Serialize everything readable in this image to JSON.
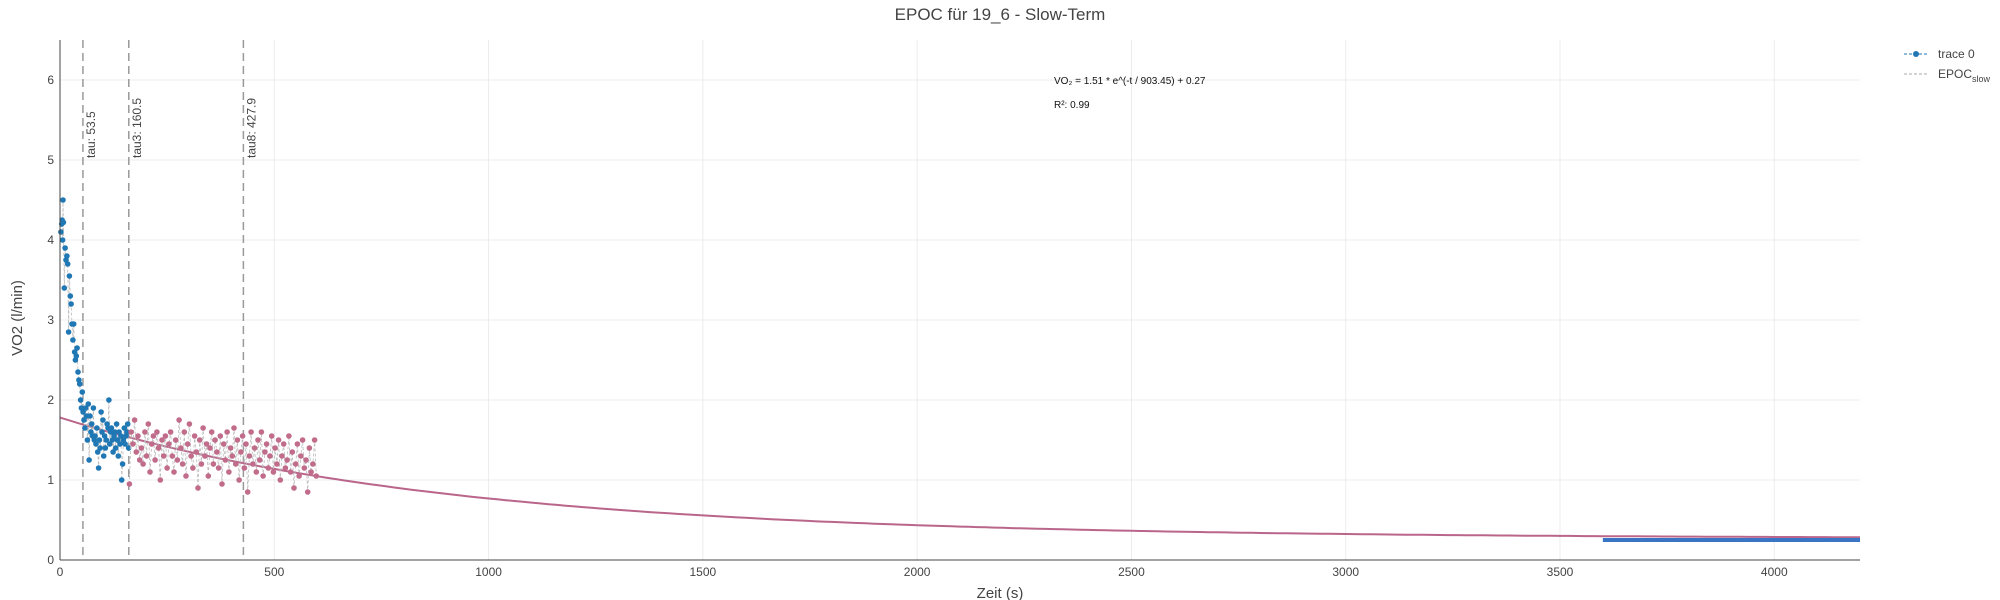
{
  "chart_data": {
    "type": "scatter",
    "title": "EPOC für 19_6 - Slow-Term",
    "xlabel": "Zeit (s)",
    "ylabel": "VO2 (l/min)",
    "xlim": [
      0,
      4200
    ],
    "ylim": [
      0,
      6.5
    ],
    "x_ticks": [
      0,
      500,
      1000,
      1500,
      2000,
      2500,
      3000,
      3500,
      4000
    ],
    "y_ticks": [
      0,
      1,
      2,
      3,
      4,
      5,
      6
    ],
    "grid": true,
    "legend_placement": "top-right",
    "legend": [
      "trace 0",
      "EPOC",
      "slow"
    ],
    "colors": {
      "trace0": "#1f77b4",
      "epoc": "#c06c8a",
      "fit": "#b9668a",
      "baseline": "#3a74c4",
      "vline": "#999999",
      "grid": "#ececec"
    },
    "fit": {
      "formula": "VO₂ = 1.51 * e^(-t / 903.45) + 0.27",
      "r2_text": "R²: 0.99",
      "a": 1.51,
      "tau": 903.45,
      "c": 0.27
    },
    "vlines": [
      {
        "x": 53.5,
        "label": "tau: 53.5"
      },
      {
        "x": 160.5,
        "label": "tau3: 160.5"
      },
      {
        "x": 427.9,
        "label": "tau8: 427.9"
      }
    ],
    "baseline": {
      "x_start": 3600,
      "x_end": 4200,
      "y": 0.25
    },
    "series": [
      {
        "name": "trace 0",
        "x": [
          2,
          4,
          5,
          6,
          7,
          8,
          10,
          12,
          14,
          16,
          18,
          20,
          22,
          24,
          26,
          28,
          30,
          32,
          34,
          36,
          38,
          40,
          42,
          44,
          46,
          48,
          50,
          52,
          54,
          56,
          58,
          60,
          62,
          64,
          66,
          68,
          70,
          72,
          74,
          76,
          78,
          80,
          82,
          84,
          86,
          88,
          90,
          92,
          94,
          96,
          98,
          100,
          102,
          104,
          106,
          108,
          110,
          112,
          114,
          116,
          118,
          120,
          122,
          124,
          126,
          128,
          130,
          132,
          134,
          136,
          138,
          140,
          142,
          144,
          146,
          148,
          150,
          152,
          154,
          156,
          158,
          160
        ],
        "y": [
          4.1,
          4.2,
          4.25,
          4.0,
          4.5,
          4.22,
          3.4,
          3.9,
          3.75,
          3.8,
          3.7,
          2.85,
          3.55,
          3.3,
          3.2,
          2.95,
          2.75,
          2.95,
          2.6,
          2.5,
          2.55,
          2.65,
          2.35,
          2.25,
          2.2,
          2.0,
          1.9,
          2.1,
          1.85,
          1.75,
          1.65,
          1.9,
          1.8,
          1.5,
          1.95,
          1.25,
          1.8,
          1.6,
          1.7,
          1.55,
          1.9,
          1.5,
          1.55,
          1.45,
          1.65,
          1.35,
          1.15,
          1.5,
          1.4,
          1.85,
          1.6,
          1.75,
          1.3,
          1.55,
          1.4,
          1.5,
          1.7,
          1.65,
          2.0,
          1.45,
          1.6,
          1.65,
          1.5,
          1.35,
          1.55,
          1.6,
          1.4,
          1.7,
          1.5,
          1.3,
          1.6,
          1.45,
          1.55,
          1.0,
          1.2,
          1.5,
          1.65,
          1.45,
          1.55,
          1.6,
          1.7,
          1.4
        ]
      },
      {
        "name": "EPOC",
        "x": [
          162,
          166,
          170,
          174,
          178,
          182,
          186,
          190,
          194,
          198,
          202,
          206,
          210,
          214,
          218,
          222,
          226,
          230,
          234,
          238,
          242,
          246,
          250,
          254,
          258,
          262,
          266,
          270,
          274,
          278,
          282,
          286,
          290,
          294,
          298,
          302,
          306,
          310,
          314,
          318,
          322,
          326,
          330,
          334,
          338,
          342,
          346,
          350,
          354,
          358,
          362,
          366,
          370,
          374,
          378,
          382,
          386,
          390,
          394,
          398,
          402,
          406,
          410,
          414,
          418,
          422,
          426,
          430,
          434,
          438,
          442,
          446,
          450,
          454,
          458,
          462,
          466,
          470,
          474,
          478,
          482,
          486,
          490,
          494,
          498,
          502,
          506,
          510,
          514,
          518,
          522,
          526,
          530,
          534,
          538,
          542,
          546,
          550,
          554,
          558,
          562,
          566,
          570,
          574,
          578,
          582,
          586,
          590,
          594,
          598
        ],
        "y": [
          0.95,
          1.6,
          1.45,
          1.75,
          1.35,
          1.55,
          1.25,
          1.4,
          1.2,
          1.6,
          1.3,
          1.7,
          1.1,
          1.45,
          1.55,
          1.25,
          1.6,
          1.4,
          1.0,
          1.5,
          1.3,
          1.55,
          1.15,
          1.45,
          1.6,
          1.3,
          1.1,
          1.5,
          1.25,
          1.75,
          1.4,
          1.2,
          1.6,
          1.05,
          1.45,
          1.7,
          1.3,
          1.15,
          1.55,
          1.35,
          0.9,
          1.5,
          1.2,
          1.65,
          1.3,
          1.45,
          1.05,
          1.4,
          1.6,
          1.2,
          1.5,
          1.35,
          1.15,
          1.55,
          0.95,
          1.45,
          1.25,
          1.6,
          1.1,
          1.4,
          1.3,
          1.65,
          1.2,
          1.5,
          1.0,
          1.35,
          1.55,
          1.15,
          1.45,
          0.85,
          1.3,
          1.6,
          1.2,
          1.4,
          1.1,
          1.5,
          1.25,
          1.6,
          1.05,
          1.35,
          1.45,
          1.15,
          1.3,
          1.55,
          1.1,
          1.4,
          1.2,
          1.5,
          1.0,
          1.3,
          1.45,
          1.15,
          1.25,
          1.55,
          1.1,
          1.35,
          0.9,
          1.2,
          1.45,
          1.05,
          1.3,
          1.5,
          1.15,
          1.25,
          0.85,
          1.4,
          1.1,
          1.2,
          1.5,
          1.05
        ]
      }
    ]
  }
}
